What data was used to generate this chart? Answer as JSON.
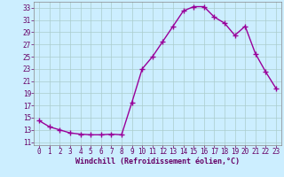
{
  "x": [
    0,
    1,
    2,
    3,
    4,
    5,
    6,
    7,
    8,
    9,
    10,
    11,
    12,
    13,
    14,
    15,
    16,
    17,
    18,
    19,
    20,
    21,
    22,
    23
  ],
  "y": [
    14.5,
    13.5,
    13.0,
    12.5,
    12.3,
    12.2,
    12.2,
    12.3,
    12.2,
    17.5,
    23.0,
    25.0,
    27.5,
    30.0,
    32.5,
    33.2,
    33.2,
    31.5,
    30.5,
    28.5,
    30.0,
    25.5,
    22.5,
    19.8
  ],
  "line_color": "#990099",
  "marker": "+",
  "marker_size": 4,
  "marker_linewidth": 1.0,
  "background_color": "#cceeff",
  "grid_color": "#aacccc",
  "xlabel": "Windchill (Refroidissement éolien,°C)",
  "xlabel_color": "#660066",
  "tick_color": "#660066",
  "spine_color": "#888888",
  "xlim": [
    -0.5,
    23.5
  ],
  "ylim": [
    10.5,
    34.0
  ],
  "yticks": [
    11,
    13,
    15,
    17,
    19,
    21,
    23,
    25,
    27,
    29,
    31,
    33
  ],
  "xticks": [
    0,
    1,
    2,
    3,
    4,
    5,
    6,
    7,
    8,
    9,
    10,
    11,
    12,
    13,
    14,
    15,
    16,
    17,
    18,
    19,
    20,
    21,
    22,
    23
  ],
  "line_width": 1.0,
  "tick_fontsize": 5.5,
  "xlabel_fontsize": 6.0
}
